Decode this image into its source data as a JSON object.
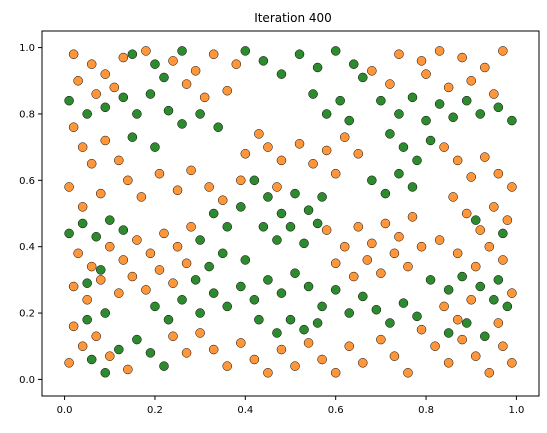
{
  "chart_data": {
    "type": "scatter",
    "title": "Iteration 400",
    "xlabel": "",
    "ylabel": "",
    "xlim": [
      -0.05,
      1.05
    ],
    "ylim": [
      -0.05,
      1.05
    ],
    "x_ticks": [
      0.0,
      0.2,
      0.4,
      0.6,
      0.8,
      1.0
    ],
    "y_ticks": [
      0.0,
      0.2,
      0.4,
      0.6,
      0.8,
      1.0
    ],
    "x_tick_labels": [
      "0.0",
      "0.2",
      "0.4",
      "0.6",
      "0.8",
      "1.0"
    ],
    "y_tick_labels": [
      "0.0",
      "0.2",
      "0.4",
      "0.6",
      "0.8",
      "1.0"
    ],
    "grid": false,
    "legend": "none",
    "marker_edge_color": "#000000",
    "series": [
      {
        "color": "#ff7f0e",
        "points": [
          [
            0.02,
            0.98
          ],
          [
            0.06,
            0.95
          ],
          [
            0.09,
            0.92
          ],
          [
            0.13,
            0.97
          ],
          [
            0.18,
            0.99
          ],
          [
            0.24,
            0.96
          ],
          [
            0.29,
            0.93
          ],
          [
            0.33,
            0.98
          ],
          [
            0.38,
            0.95
          ],
          [
            0.74,
            0.98
          ],
          [
            0.79,
            0.96
          ],
          [
            0.83,
            0.99
          ],
          [
            0.88,
            0.97
          ],
          [
            0.93,
            0.94
          ],
          [
            0.97,
            0.99
          ],
          [
            0.03,
            0.9
          ],
          [
            0.07,
            0.86
          ],
          [
            0.11,
            0.88
          ],
          [
            0.27,
            0.89
          ],
          [
            0.31,
            0.85
          ],
          [
            0.36,
            0.87
          ],
          [
            0.68,
            0.93
          ],
          [
            0.72,
            0.89
          ],
          [
            0.8,
            0.92
          ],
          [
            0.85,
            0.88
          ],
          [
            0.9,
            0.9
          ],
          [
            0.95,
            0.86
          ],
          [
            0.02,
            0.76
          ],
          [
            0.04,
            0.7
          ],
          [
            0.06,
            0.65
          ],
          [
            0.09,
            0.72
          ],
          [
            0.12,
            0.66
          ],
          [
            0.14,
            0.6
          ],
          [
            0.17,
            0.55
          ],
          [
            0.21,
            0.62
          ],
          [
            0.25,
            0.57
          ],
          [
            0.28,
            0.63
          ],
          [
            0.32,
            0.58
          ],
          [
            0.35,
            0.54
          ],
          [
            0.39,
            0.6
          ],
          [
            0.01,
            0.58
          ],
          [
            0.04,
            0.52
          ],
          [
            0.08,
            0.56
          ],
          [
            0.4,
            0.68
          ],
          [
            0.43,
            0.74
          ],
          [
            0.45,
            0.7
          ],
          [
            0.48,
            0.66
          ],
          [
            0.52,
            0.71
          ],
          [
            0.55,
            0.65
          ],
          [
            0.58,
            0.69
          ],
          [
            0.62,
            0.73
          ],
          [
            0.65,
            0.68
          ],
          [
            0.6,
            0.62
          ],
          [
            0.47,
            0.58
          ],
          [
            0.84,
            0.7
          ],
          [
            0.87,
            0.66
          ],
          [
            0.9,
            0.61
          ],
          [
            0.93,
            0.67
          ],
          [
            0.96,
            0.62
          ],
          [
            0.99,
            0.58
          ],
          [
            0.86,
            0.55
          ],
          [
            0.89,
            0.5
          ],
          [
            0.92,
            0.45
          ],
          [
            0.95,
            0.52
          ],
          [
            0.98,
            0.48
          ],
          [
            0.83,
            0.42
          ],
          [
            0.87,
            0.38
          ],
          [
            0.91,
            0.34
          ],
          [
            0.94,
            0.4
          ],
          [
            0.97,
            0.36
          ],
          [
            0.03,
            0.38
          ],
          [
            0.06,
            0.34
          ],
          [
            0.1,
            0.4
          ],
          [
            0.13,
            0.36
          ],
          [
            0.16,
            0.42
          ],
          [
            0.19,
            0.38
          ],
          [
            0.22,
            0.44
          ],
          [
            0.25,
            0.4
          ],
          [
            0.28,
            0.46
          ],
          [
            0.08,
            0.3
          ],
          [
            0.12,
            0.26
          ],
          [
            0.15,
            0.31
          ],
          [
            0.18,
            0.27
          ],
          [
            0.21,
            0.33
          ],
          [
            0.24,
            0.29
          ],
          [
            0.27,
            0.35
          ],
          [
            0.02,
            0.28
          ],
          [
            0.05,
            0.24
          ],
          [
            0.58,
            0.45
          ],
          [
            0.62,
            0.4
          ],
          [
            0.65,
            0.46
          ],
          [
            0.68,
            0.41
          ],
          [
            0.71,
            0.47
          ],
          [
            0.74,
            0.43
          ],
          [
            0.77,
            0.49
          ],
          [
            0.6,
            0.35
          ],
          [
            0.64,
            0.31
          ],
          [
            0.67,
            0.36
          ],
          [
            0.7,
            0.32
          ],
          [
            0.73,
            0.38
          ],
          [
            0.76,
            0.34
          ],
          [
            0.79,
            0.4
          ],
          [
            0.02,
            0.16
          ],
          [
            0.04,
            0.1
          ],
          [
            0.07,
            0.13
          ],
          [
            0.1,
            0.07
          ],
          [
            0.14,
            0.03
          ],
          [
            0.01,
            0.05
          ],
          [
            0.24,
            0.13
          ],
          [
            0.27,
            0.08
          ],
          [
            0.3,
            0.14
          ],
          [
            0.33,
            0.09
          ],
          [
            0.36,
            0.04
          ],
          [
            0.39,
            0.11
          ],
          [
            0.42,
            0.06
          ],
          [
            0.45,
            0.02
          ],
          [
            0.48,
            0.09
          ],
          [
            0.51,
            0.04
          ],
          [
            0.54,
            0.11
          ],
          [
            0.57,
            0.06
          ],
          [
            0.6,
            0.02
          ],
          [
            0.63,
            0.1
          ],
          [
            0.66,
            0.05
          ],
          [
            0.7,
            0.12
          ],
          [
            0.73,
            0.07
          ],
          [
            0.76,
            0.02
          ],
          [
            0.79,
            0.15
          ],
          [
            0.82,
            0.1
          ],
          [
            0.85,
            0.05
          ],
          [
            0.88,
            0.12
          ],
          [
            0.91,
            0.07
          ],
          [
            0.94,
            0.02
          ],
          [
            0.97,
            0.1
          ],
          [
            0.99,
            0.05
          ],
          [
            0.84,
            0.22
          ],
          [
            0.87,
            0.18
          ],
          [
            0.9,
            0.24
          ],
          [
            0.96,
            0.17
          ],
          [
            0.99,
            0.26
          ]
        ]
      },
      {
        "color": "#007000",
        "points": [
          [
            0.15,
            0.98
          ],
          [
            0.2,
            0.95
          ],
          [
            0.22,
            0.91
          ],
          [
            0.26,
            0.99
          ],
          [
            0.4,
            0.99
          ],
          [
            0.44,
            0.96
          ],
          [
            0.48,
            0.92
          ],
          [
            0.52,
            0.98
          ],
          [
            0.56,
            0.94
          ],
          [
            0.6,
            0.99
          ],
          [
            0.64,
            0.95
          ],
          [
            0.66,
            0.91
          ],
          [
            0.01,
            0.84
          ],
          [
            0.05,
            0.8
          ],
          [
            0.09,
            0.82
          ],
          [
            0.13,
            0.85
          ],
          [
            0.16,
            0.8
          ],
          [
            0.19,
            0.86
          ],
          [
            0.23,
            0.81
          ],
          [
            0.26,
            0.77
          ],
          [
            0.3,
            0.8
          ],
          [
            0.34,
            0.76
          ],
          [
            0.15,
            0.73
          ],
          [
            0.2,
            0.7
          ],
          [
            0.7,
            0.84
          ],
          [
            0.74,
            0.8
          ],
          [
            0.77,
            0.85
          ],
          [
            0.8,
            0.78
          ],
          [
            0.83,
            0.83
          ],
          [
            0.86,
            0.79
          ],
          [
            0.89,
            0.84
          ],
          [
            0.92,
            0.8
          ],
          [
            0.96,
            0.82
          ],
          [
            0.99,
            0.78
          ],
          [
            0.72,
            0.74
          ],
          [
            0.75,
            0.7
          ],
          [
            0.78,
            0.66
          ],
          [
            0.81,
            0.72
          ],
          [
            0.68,
            0.6
          ],
          [
            0.71,
            0.56
          ],
          [
            0.74,
            0.62
          ],
          [
            0.77,
            0.58
          ],
          [
            0.42,
            0.6
          ],
          [
            0.45,
            0.55
          ],
          [
            0.48,
            0.5
          ],
          [
            0.51,
            0.56
          ],
          [
            0.54,
            0.51
          ],
          [
            0.57,
            0.55
          ],
          [
            0.44,
            0.46
          ],
          [
            0.47,
            0.42
          ],
          [
            0.5,
            0.46
          ],
          [
            0.53,
            0.41
          ],
          [
            0.56,
            0.47
          ],
          [
            0.33,
            0.5
          ],
          [
            0.36,
            0.46
          ],
          [
            0.39,
            0.52
          ],
          [
            0.3,
            0.42
          ],
          [
            0.01,
            0.44
          ],
          [
            0.04,
            0.47
          ],
          [
            0.07,
            0.43
          ],
          [
            0.1,
            0.48
          ],
          [
            0.13,
            0.45
          ],
          [
            0.08,
            0.33
          ],
          [
            0.05,
            0.29
          ],
          [
            0.2,
            0.22
          ],
          [
            0.23,
            0.18
          ],
          [
            0.26,
            0.24
          ],
          [
            0.3,
            0.2
          ],
          [
            0.33,
            0.26
          ],
          [
            0.36,
            0.22
          ],
          [
            0.39,
            0.28
          ],
          [
            0.42,
            0.24
          ],
          [
            0.45,
            0.3
          ],
          [
            0.48,
            0.26
          ],
          [
            0.51,
            0.32
          ],
          [
            0.54,
            0.28
          ],
          [
            0.57,
            0.22
          ],
          [
            0.6,
            0.27
          ],
          [
            0.63,
            0.2
          ],
          [
            0.66,
            0.25
          ],
          [
            0.69,
            0.21
          ],
          [
            0.72,
            0.17
          ],
          [
            0.75,
            0.23
          ],
          [
            0.78,
            0.19
          ],
          [
            0.06,
            0.06
          ],
          [
            0.09,
            0.02
          ],
          [
            0.12,
            0.09
          ],
          [
            0.16,
            0.12
          ],
          [
            0.19,
            0.08
          ],
          [
            0.22,
            0.04
          ],
          [
            0.05,
            0.18
          ],
          [
            0.09,
            0.2
          ],
          [
            0.29,
            0.3
          ],
          [
            0.32,
            0.34
          ],
          [
            0.35,
            0.38
          ],
          [
            0.4,
            0.36
          ],
          [
            0.43,
            0.18
          ],
          [
            0.47,
            0.14
          ],
          [
            0.5,
            0.18
          ],
          [
            0.53,
            0.15
          ],
          [
            0.56,
            0.17
          ],
          [
            0.81,
            0.3
          ],
          [
            0.85,
            0.27
          ],
          [
            0.88,
            0.31
          ],
          [
            0.92,
            0.28
          ],
          [
            0.95,
            0.24
          ],
          [
            0.98,
            0.22
          ],
          [
            0.85,
            0.14
          ],
          [
            0.89,
            0.17
          ],
          [
            0.93,
            0.13
          ],
          [
            0.96,
            0.3
          ],
          [
            0.91,
            0.48
          ],
          [
            0.97,
            0.44
          ],
          [
            0.61,
            0.84
          ],
          [
            0.58,
            0.8
          ],
          [
            0.55,
            0.86
          ],
          [
            0.63,
            0.78
          ]
        ]
      }
    ]
  }
}
